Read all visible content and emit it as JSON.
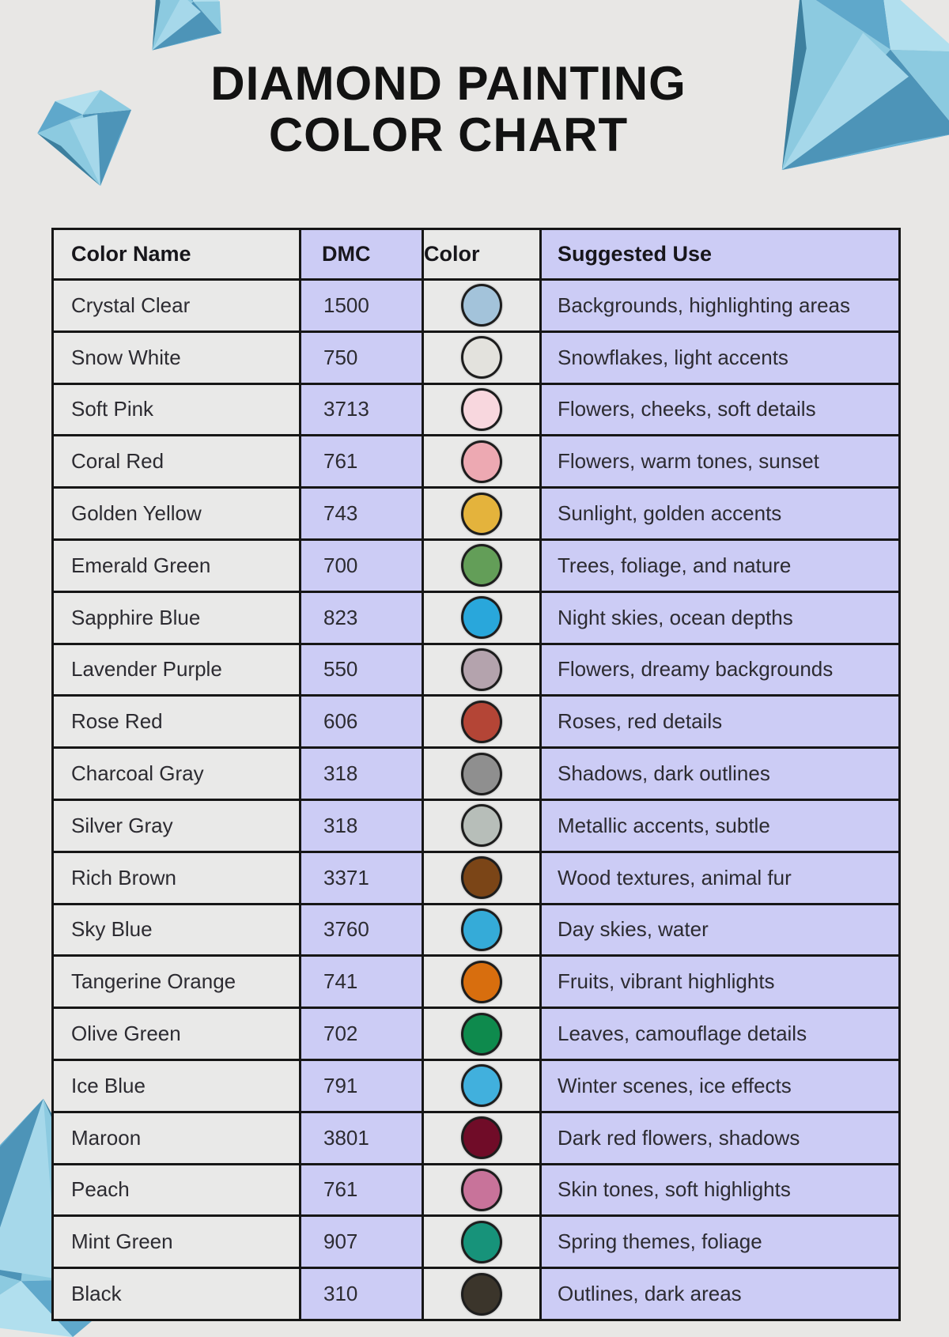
{
  "page": {
    "title_line1": "DIAMOND PAINTING",
    "title_line2": "COLOR CHART",
    "background_color": "#e8e7e5",
    "accent_lavender": "#ccccf5",
    "cell_gray": "#e9e9e8",
    "border_color": "#161616",
    "diamond_palette": [
      "#b1dfee",
      "#a6d8ea",
      "#8ccae0",
      "#7fc2dc",
      "#5fa8cb",
      "#4d94b8",
      "#3d7f9e"
    ]
  },
  "table": {
    "headers": [
      "Color Name",
      "DMC",
      "Color",
      "Suggested Use"
    ],
    "rows": [
      {
        "name": "Crystal Clear",
        "dmc": "1500",
        "hex": "#a3c3da",
        "use": "Backgrounds, highlighting areas"
      },
      {
        "name": "Snow White",
        "dmc": "750",
        "hex": "#e3e2dd",
        "use": "Snowflakes, light accents"
      },
      {
        "name": "Soft Pink",
        "dmc": "3713",
        "hex": "#f8d7de",
        "use": "Flowers, cheeks, soft details"
      },
      {
        "name": "Coral Red",
        "dmc": "761",
        "hex": "#eda9b2",
        "use": "Flowers, warm tones, sunset"
      },
      {
        "name": "Golden Yellow",
        "dmc": "743",
        "hex": "#e4b33c",
        "use": "Sunlight, golden accents"
      },
      {
        "name": "Emerald Green",
        "dmc": "700",
        "hex": "#639e58",
        "use": "Trees, foliage, and nature"
      },
      {
        "name": "Sapphire Blue",
        "dmc": "823",
        "hex": "#29a7db",
        "use": "Night skies, ocean depths"
      },
      {
        "name": "Lavender Purple",
        "dmc": "550",
        "hex": "#b4a3ad",
        "use": "Flowers, dreamy backgrounds"
      },
      {
        "name": "Rose Red",
        "dmc": "606",
        "hex": "#b44536",
        "use": "Roses, red details"
      },
      {
        "name": "Charcoal Gray",
        "dmc": "318",
        "hex": "#8f8f8f",
        "use": "Shadows, dark outlines"
      },
      {
        "name": "Silver Gray",
        "dmc": "318",
        "hex": "#b7beb9",
        "use": "Metallic accents, subtle"
      },
      {
        "name": "Rich Brown",
        "dmc": "3371",
        "hex": "#7b4517",
        "use": "Wood textures, animal fur"
      },
      {
        "name": "Sky Blue",
        "dmc": "3760",
        "hex": "#35abd8",
        "use": "Day skies, water"
      },
      {
        "name": "Tangerine Orange",
        "dmc": "741",
        "hex": "#d86e0e",
        "use": "Fruits, vibrant highlights"
      },
      {
        "name": "Olive Green",
        "dmc": "702",
        "hex": "#0e8a4d",
        "use": "Leaves, camouflage details"
      },
      {
        "name": "Ice Blue",
        "dmc": "791",
        "hex": "#41b0dd",
        "use": "Winter scenes, ice effects"
      },
      {
        "name": "Maroon",
        "dmc": "3801",
        "hex": "#700c28",
        "use": "Dark red flowers, shadows"
      },
      {
        "name": "Peach",
        "dmc": "761",
        "hex": "#c8739a",
        "use": "Skin tones, soft highlights"
      },
      {
        "name": "Mint Green",
        "dmc": "907",
        "hex": "#17937a",
        "use": "Spring themes, foliage"
      },
      {
        "name": "Black",
        "dmc": "310",
        "hex": "#3b352b",
        "use": "Outlines, dark areas"
      }
    ]
  }
}
